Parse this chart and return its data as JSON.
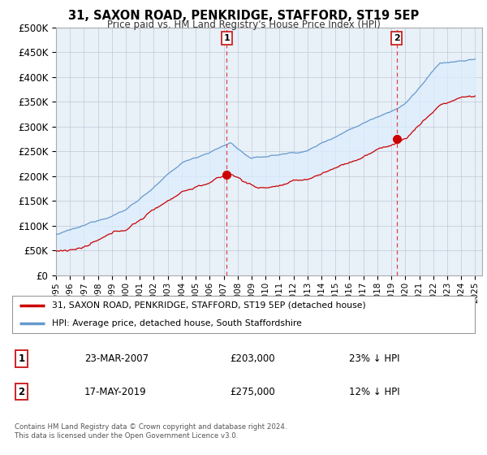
{
  "title": "31, SAXON ROAD, PENKRIDGE, STAFFORD, ST19 5EP",
  "subtitle": "Price paid vs. HM Land Registry's House Price Index (HPI)",
  "ytick_values": [
    0,
    50000,
    100000,
    150000,
    200000,
    250000,
    300000,
    350000,
    400000,
    450000,
    500000
  ],
  "ylim": [
    0,
    500000
  ],
  "xlim_start": 1995.0,
  "xlim_end": 2025.5,
  "sale1_x": 2007.22,
  "sale1_y": 203000,
  "sale2_x": 2019.38,
  "sale2_y": 275000,
  "legend_property": "31, SAXON ROAD, PENKRIDGE, STAFFORD, ST19 5EP (detached house)",
  "legend_hpi": "HPI: Average price, detached house, South Staffordshire",
  "footer1": "Contains HM Land Registry data © Crown copyright and database right 2024.",
  "footer2": "This data is licensed under the Open Government Licence v3.0.",
  "table_row1_num": "1",
  "table_row1_date": "23-MAR-2007",
  "table_row1_price": "£203,000",
  "table_row1_hpi": "23% ↓ HPI",
  "table_row2_num": "2",
  "table_row2_date": "17-MAY-2019",
  "table_row2_price": "£275,000",
  "table_row2_hpi": "12% ↓ HPI",
  "color_property": "#cc0000",
  "color_hpi": "#6699cc",
  "color_fill": "#ddeeff",
  "color_vline": "#dd4444",
  "bg_color": "#e8f0f8",
  "grid_color": "#c0c8d8"
}
